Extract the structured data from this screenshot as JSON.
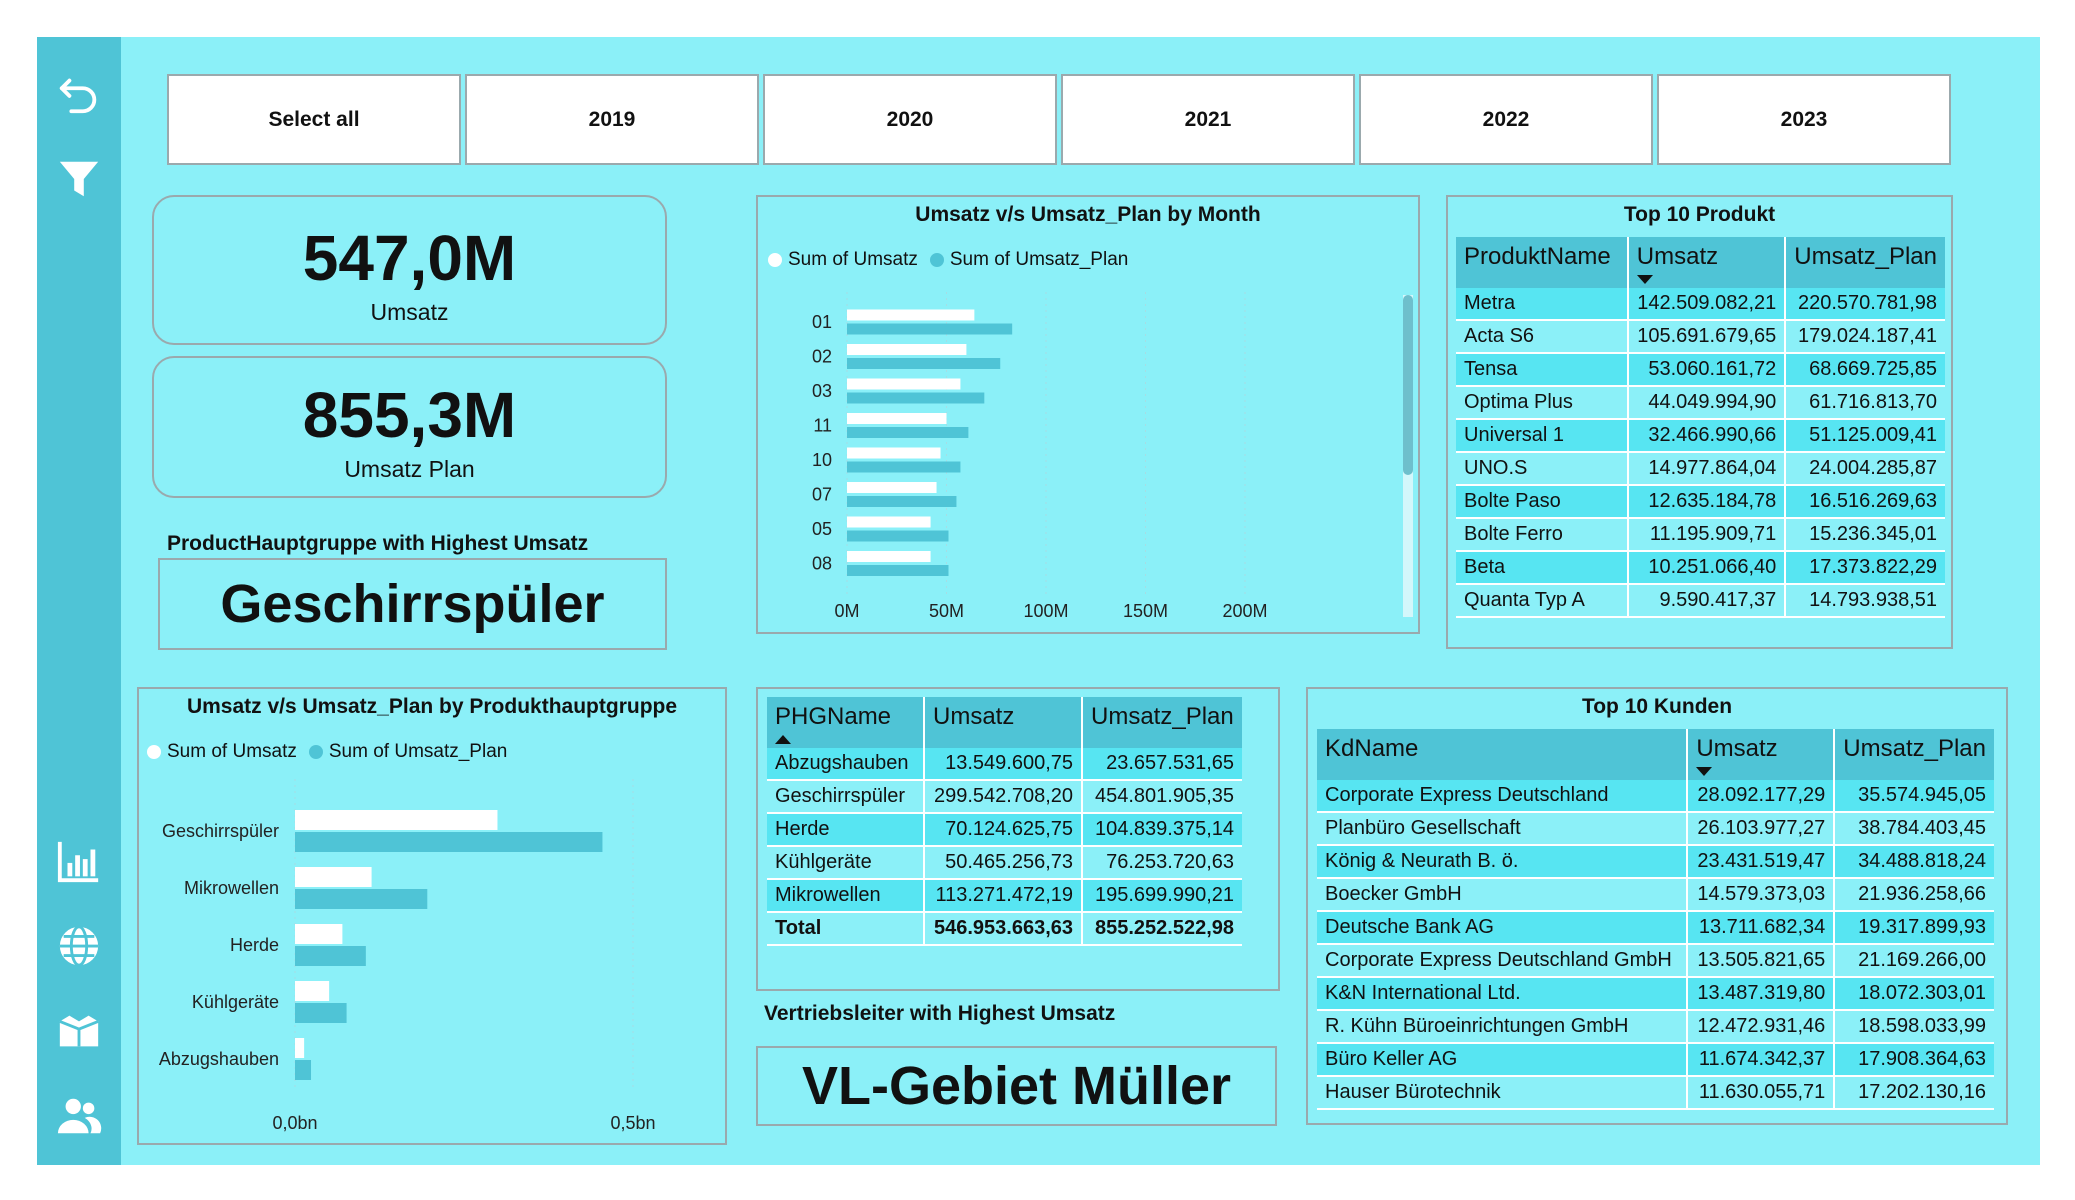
{
  "slicers": [
    "Select all",
    "2019",
    "2020",
    "2021",
    "2022",
    "2023"
  ],
  "kpi": {
    "umsatz_value": "547,0M",
    "umsatz_label": "Umsatz",
    "plan_value": "855,3M",
    "plan_label": "Umsatz  Plan"
  },
  "highest_group": {
    "heading": "ProductHauptgruppe with Highest Umsatz",
    "value": "Geschirrspüler"
  },
  "highest_vl": {
    "heading": "Vertriebsleiter with Highest Umsatz",
    "value": "VL-Gebiet Müller"
  },
  "colors": {
    "umsatz": "#ffffff",
    "plan": "#4fc4d6",
    "background": "#8bf0f8",
    "sidebar": "#4fc4d6"
  },
  "icons": [
    "back-arrow-icon",
    "filter-icon",
    "bar-chart-icon",
    "globe-icon",
    "box-icon",
    "users-icon"
  ],
  "month_chart": {
    "title": "Umsatz v/s Umsatz_Plan by Month",
    "legend": [
      "Sum of Umsatz",
      "Sum of Umsatz_Plan"
    ],
    "x_ticks": [
      "0M",
      "50M",
      "100M",
      "150M",
      "200M"
    ]
  },
  "group_chart": {
    "title": "Umsatz v/s Umsatz_Plan by Produkthauptgruppe",
    "legend": [
      "Sum of Umsatz",
      "Sum of Umsatz_Plan"
    ],
    "x_ticks": [
      "0,0bn",
      "0,5bn"
    ]
  },
  "chart_data": [
    {
      "type": "bar",
      "orientation": "horizontal",
      "title": "Umsatz v/s Umsatz_Plan by Month",
      "categories": [
        "01",
        "02",
        "03",
        "11",
        "10",
        "07",
        "05",
        "08"
      ],
      "series": [
        {
          "name": "Sum of Umsatz",
          "values": [
            64,
            60,
            57,
            50,
            47,
            45,
            42,
            42
          ]
        },
        {
          "name": "Sum of Umsatz_Plan",
          "values": [
            83,
            77,
            69,
            61,
            57,
            55,
            51,
            51
          ]
        }
      ],
      "xlim": [
        0,
        200
      ],
      "x_unit": "M",
      "legend_position": "top-left"
    },
    {
      "type": "bar",
      "orientation": "horizontal",
      "title": "Umsatz v/s Umsatz_Plan by Produkthauptgruppe",
      "categories": [
        "Geschirrspüler",
        "Mikrowellen",
        "Herde",
        "Kühlgeräte",
        "Abzugshauben"
      ],
      "series": [
        {
          "name": "Sum of Umsatz",
          "values": [
            0.2995,
            0.1133,
            0.0701,
            0.0505,
            0.0135
          ]
        },
        {
          "name": "Sum of Umsatz_Plan",
          "values": [
            0.4548,
            0.1957,
            0.1048,
            0.0763,
            0.0237
          ]
        }
      ],
      "xlim": [
        0,
        0.5
      ],
      "x_unit": "bn",
      "legend_position": "top-left"
    }
  ],
  "top_produkt": {
    "title": "Top 10 Produkt",
    "headers": [
      "ProduktName",
      "Umsatz",
      "Umsatz_Plan"
    ],
    "rows": [
      [
        "Metra",
        "142.509.082,21",
        "220.570.781,98"
      ],
      [
        "Acta S6",
        "105.691.679,65",
        "179.024.187,41"
      ],
      [
        "Tensa",
        "53.060.161,72",
        "68.669.725,85"
      ],
      [
        "Optima Plus",
        "44.049.994,90",
        "61.716.813,70"
      ],
      [
        "Universal 1",
        "32.466.990,66",
        "51.125.009,41"
      ],
      [
        "UNO.S",
        "14.977.864,04",
        "24.004.285,87"
      ],
      [
        "Bolte Paso",
        "12.635.184,78",
        "16.516.269,63"
      ],
      [
        "Bolte Ferro",
        "11.195.909,71",
        "15.236.345,01"
      ],
      [
        "Beta",
        "10.251.066,40",
        "17.373.822,29"
      ],
      [
        "Quanta Typ A",
        "9.590.417,37",
        "14.793.938,51"
      ]
    ]
  },
  "phg_table": {
    "headers": [
      "PHGName",
      "Umsatz",
      "Umsatz_Plan"
    ],
    "rows": [
      [
        "Abzugshauben",
        "13.549.600,75",
        "23.657.531,65"
      ],
      [
        "Geschirrspüler",
        "299.542.708,20",
        "454.801.905,35"
      ],
      [
        "Herde",
        "70.124.625,75",
        "104.839.375,14"
      ],
      [
        "Kühlgeräte",
        "50.465.256,73",
        "76.253.720,63"
      ],
      [
        "Mikrowellen",
        "113.271.472,19",
        "195.699.990,21"
      ]
    ],
    "total": [
      "Total",
      "546.953.663,63",
      "855.252.522,98"
    ]
  },
  "top_kunden": {
    "title": "Top 10 Kunden",
    "headers": [
      "KdName",
      "Umsatz",
      "Umsatz_Plan"
    ],
    "rows": [
      [
        "Corporate Express Deutschland",
        "28.092.177,29",
        "35.574.945,05"
      ],
      [
        "Planbüro Gesellschaft",
        "26.103.977,27",
        "38.784.403,45"
      ],
      [
        "König & Neurath B. ö.",
        "23.431.519,47",
        "34.488.818,24"
      ],
      [
        "Boecker GmbH",
        "14.579.373,03",
        "21.936.258,66"
      ],
      [
        "Deutsche Bank AG",
        "13.711.682,34",
        "19.317.899,93"
      ],
      [
        "Corporate Express Deutschland GmbH",
        "13.505.821,65",
        "21.169.266,00"
      ],
      [
        "K&N International Ltd.",
        "13.487.319,80",
        "18.072.303,01"
      ],
      [
        "R. Kühn Büroeinrichtungen GmbH",
        "12.472.931,46",
        "18.598.033,99"
      ],
      [
        "Büro Keller AG",
        "11.674.342,37",
        "17.908.364,63"
      ],
      [
        "Hauser Bürotechnik",
        "11.630.055,71",
        "17.202.130,16"
      ]
    ]
  }
}
